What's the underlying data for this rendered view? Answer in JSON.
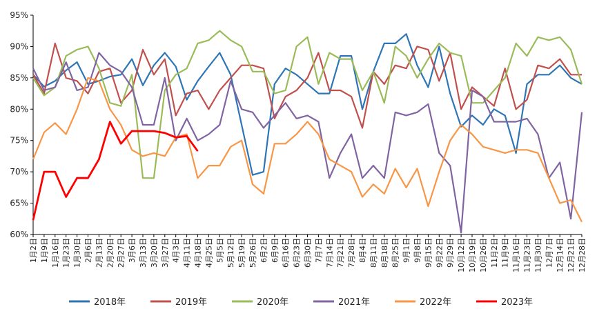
{
  "chart_data": {
    "type": "line",
    "title": "",
    "xlabel": "",
    "ylabel": "",
    "ylim": [
      0.6,
      0.95
    ],
    "ytick_labels": [
      "60%",
      "65%",
      "70%",
      "75%",
      "80%",
      "85%",
      "90%",
      "95%"
    ],
    "yticks": [
      0.6,
      0.65,
      0.7,
      0.75,
      0.8,
      0.85,
      0.9,
      0.95
    ],
    "grid": false,
    "legend_position": "bottom",
    "x_labels": [
      "1月2日",
      "1月9日",
      "1月16日",
      "1月23日",
      "1月30日",
      "2月6日",
      "2月13日",
      "2月20日",
      "2月27日",
      "3月6日",
      "3月13日",
      "3月20日",
      "3月27日",
      "4月3日",
      "4月11日",
      "4月18日",
      "4月25日",
      "5月5日",
      "5月12日",
      "5月19日",
      "5月26日",
      "6月2日",
      "6月9日",
      "6月16日",
      "6月23日",
      "6月30日",
      "7月7日",
      "7月14日",
      "7月21日",
      "7月28日",
      "8月4日",
      "8月11日",
      "8月18日",
      "8月25日",
      "9月1日",
      "9月8日",
      "9月15日",
      "9月22日",
      "9月29日",
      "10月12日",
      "10月19日",
      "10月26日",
      "11月2日",
      "11月9日",
      "11月16日",
      "11月23日",
      "11月30日",
      "12月7日",
      "12月14日",
      "12月21日",
      "12月28日"
    ],
    "series": [
      {
        "name": "2018年",
        "color": "#2e75b6",
        "values": [
          0.855,
          0.836,
          0.845,
          0.862,
          0.875,
          0.84,
          0.845,
          0.852,
          0.855,
          0.88,
          0.838,
          0.87,
          0.89,
          0.868,
          0.815,
          0.845,
          0.868,
          0.89,
          0.855,
          0.775,
          0.695,
          0.7,
          0.84,
          0.865,
          0.855,
          0.84,
          0.825,
          0.825,
          0.885,
          0.885,
          0.8,
          0.86,
          0.905,
          0.905,
          0.92,
          0.87,
          0.835,
          0.9,
          0.825,
          0.772,
          0.79,
          0.775,
          0.8,
          0.79,
          0.73,
          0.84,
          0.855,
          0.855,
          0.87,
          0.85,
          0.84
        ]
      },
      {
        "name": "2019年",
        "color": "#c0504d",
        "values": [
          0.855,
          0.825,
          0.905,
          0.85,
          0.845,
          0.825,
          0.86,
          0.865,
          0.81,
          0.83,
          0.895,
          0.855,
          0.88,
          0.79,
          0.825,
          0.83,
          0.8,
          0.83,
          0.85,
          0.87,
          0.87,
          0.865,
          0.785,
          0.82,
          0.83,
          0.85,
          0.89,
          0.83,
          0.83,
          0.82,
          0.77,
          0.86,
          0.84,
          0.87,
          0.865,
          0.9,
          0.895,
          0.845,
          0.89,
          0.8,
          0.835,
          0.82,
          0.805,
          0.865,
          0.8,
          0.815,
          0.87,
          0.865,
          0.88,
          0.855,
          0.855
        ]
      },
      {
        "name": "2020年",
        "color": "#9bbb59",
        "values": [
          0.85,
          0.822,
          0.835,
          0.885,
          0.895,
          0.9,
          0.865,
          0.81,
          0.805,
          0.855,
          0.69,
          0.69,
          0.83,
          0.855,
          0.865,
          0.905,
          0.91,
          0.925,
          0.91,
          0.9,
          0.86,
          0.86,
          0.825,
          0.83,
          0.9,
          0.915,
          0.84,
          0.89,
          0.88,
          0.88,
          0.83,
          0.86,
          0.81,
          0.9,
          0.885,
          0.85,
          0.88,
          0.905,
          0.89,
          0.885,
          0.81,
          0.81,
          0.83,
          0.85,
          0.905,
          0.885,
          0.915,
          0.91,
          0.915,
          0.895,
          0.84
        ]
      },
      {
        "name": "2021年",
        "color": "#8064a2",
        "values": [
          0.865,
          0.83,
          0.835,
          0.875,
          0.83,
          0.835,
          0.89,
          0.87,
          0.86,
          0.835,
          0.775,
          0.775,
          0.85,
          0.75,
          0.785,
          0.75,
          0.76,
          0.775,
          0.845,
          0.8,
          0.795,
          0.77,
          0.79,
          0.81,
          0.785,
          0.79,
          0.78,
          0.69,
          0.73,
          0.76,
          0.69,
          0.71,
          0.69,
          0.795,
          0.79,
          0.795,
          0.808,
          0.73,
          0.71,
          0.603,
          0.83,
          0.82,
          0.78,
          0.78,
          0.78,
          0.785,
          0.76,
          0.69,
          0.715,
          0.625,
          0.795
        ]
      },
      {
        "name": "2022年",
        "color": "#f79646",
        "values": [
          0.72,
          0.763,
          0.778,
          0.76,
          0.8,
          0.85,
          0.845,
          0.8,
          0.775,
          0.735,
          0.725,
          0.73,
          0.725,
          0.755,
          0.76,
          0.69,
          0.71,
          0.71,
          0.74,
          0.75,
          0.68,
          0.665,
          0.745,
          0.745,
          0.76,
          0.78,
          0.76,
          0.72,
          0.71,
          0.7,
          0.66,
          0.68,
          0.665,
          0.705,
          0.675,
          0.705,
          0.645,
          0.7,
          0.75,
          0.775,
          0.76,
          0.74,
          0.735,
          0.73,
          0.735,
          0.735,
          0.73,
          0.69,
          0.65,
          0.655,
          0.62
        ]
      },
      {
        "name": "2023年",
        "color": "#ff0000",
        "values": [
          0.623,
          0.7,
          0.7,
          0.66,
          0.69,
          0.69,
          0.72,
          0.78,
          0.745,
          0.765,
          0.765,
          0.765,
          0.762,
          0.755,
          0.757,
          0.733
        ]
      }
    ]
  },
  "legend": {
    "items": [
      "2018年",
      "2019年",
      "2020年",
      "2021年",
      "2022年",
      "2023年"
    ]
  }
}
